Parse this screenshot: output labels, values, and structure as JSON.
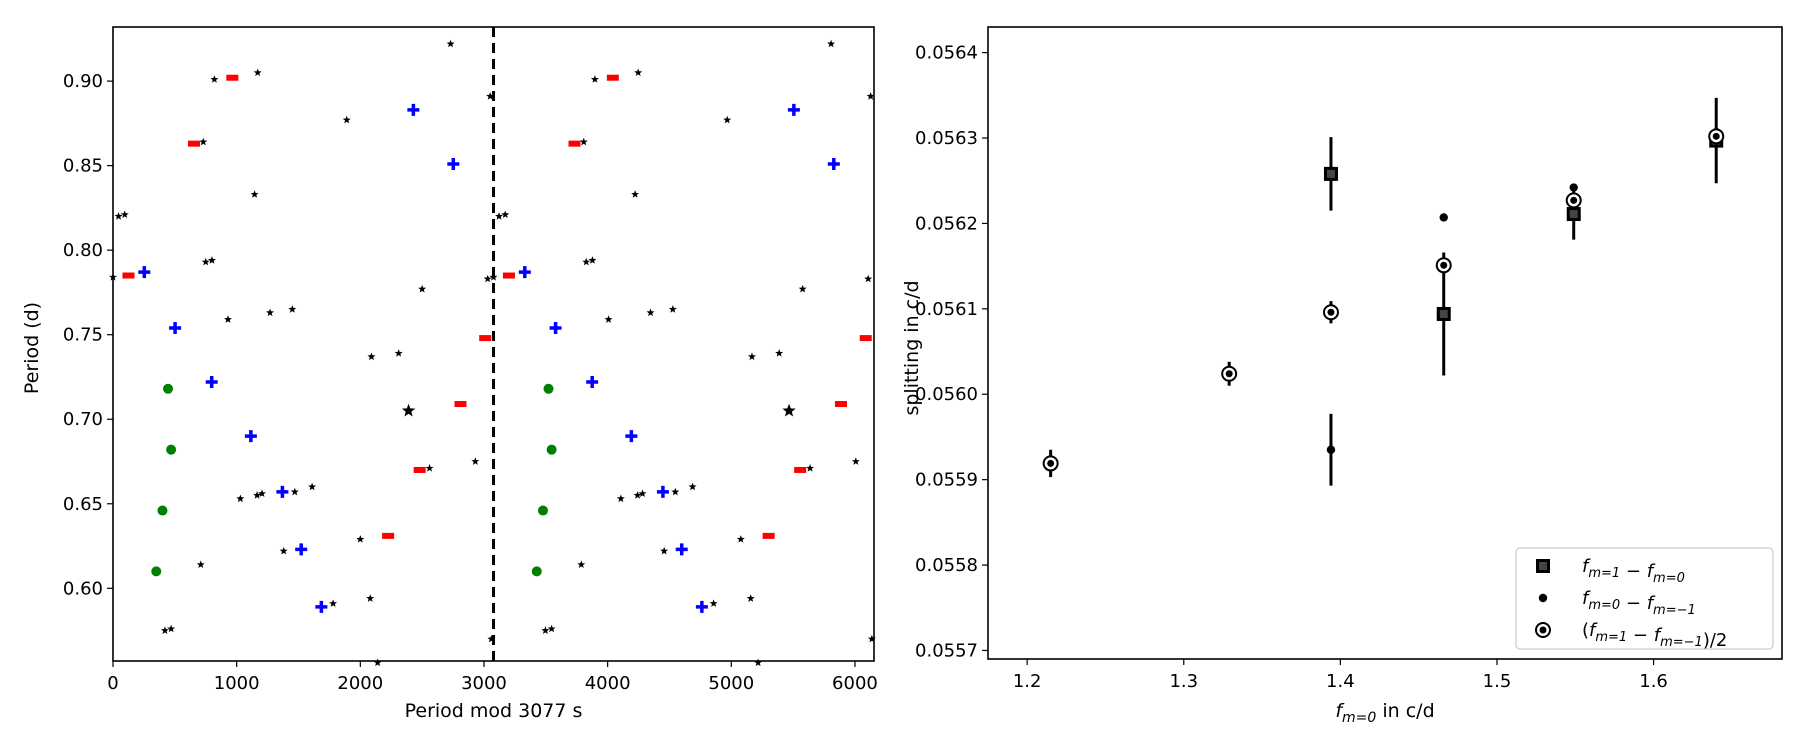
{
  "chart_data": [
    {
      "type": "scatter",
      "title": "",
      "xlabel": "Period mod 3077 s",
      "ylabel": "Period (d)",
      "xlim": [
        0,
        6154
      ],
      "ylim": [
        0.557,
        0.932
      ],
      "xticks": [
        0,
        1000,
        2000,
        3000,
        4000,
        5000,
        6000
      ],
      "yticks": [
        0.6,
        0.65,
        0.7,
        0.75,
        0.8,
        0.85,
        0.9
      ],
      "grid": false,
      "vline": {
        "x": 3077,
        "style": "dashed",
        "color": "#000000"
      },
      "repeat_offset": 3077,
      "series": [
        {
          "marker": "plus",
          "color": "#0000ff",
          "points": [
            [
              253,
              0.787
            ],
            [
              502,
              0.754
            ],
            [
              798,
              0.722
            ],
            [
              1115,
              0.69
            ],
            [
              1370,
              0.657
            ],
            [
              1522,
              0.623
            ],
            [
              1685,
              0.589
            ],
            [
              2429,
              0.883
            ],
            [
              2752,
              0.851
            ]
          ]
        },
        {
          "marker": "dash",
          "color": "#ff0000",
          "points": [
            [
              125,
              0.785
            ],
            [
              655,
              0.863
            ],
            [
              965,
              0.902
            ],
            [
              2225,
              0.631
            ],
            [
              2480,
              0.67
            ],
            [
              2810,
              0.709
            ],
            [
              3010,
              0.748
            ]
          ]
        },
        {
          "marker": "dot",
          "color": "#008000",
          "points": [
            [
              350,
              0.61
            ],
            [
              400,
              0.646
            ],
            [
              445,
              0.718
            ],
            [
              470,
              0.682
            ]
          ]
        },
        {
          "marker": "star",
          "color": "#000000",
          "points": [
            [
              0,
              0.784
            ],
            [
              45,
              0.82
            ],
            [
              95,
              0.821
            ],
            [
              420,
              0.575
            ],
            [
              470,
              0.576
            ],
            [
              710,
              0.614
            ],
            [
              750,
              0.793
            ],
            [
              800,
              0.794
            ],
            [
              730,
              0.864
            ],
            [
              820,
              0.901
            ],
            [
              930,
              0.759
            ],
            [
              1030,
              0.653
            ],
            [
              1145,
              0.833
            ],
            [
              1165,
              0.655
            ],
            [
              1205,
              0.656
            ],
            [
              1170,
              0.905
            ],
            [
              1270,
              0.763
            ],
            [
              1380,
              0.622
            ],
            [
              1450,
              0.765
            ],
            [
              1470,
              0.657
            ],
            [
              1610,
              0.66
            ],
            [
              1780,
              0.591
            ],
            [
              1890,
              0.877
            ],
            [
              2000,
              0.629
            ],
            [
              2080,
              0.594
            ],
            [
              2090,
              0.737
            ],
            [
              2140,
              0.556
            ],
            [
              2310,
              0.739
            ],
            [
              2500,
              0.777
            ],
            [
              2560,
              0.671
            ],
            [
              2730,
              0.922
            ],
            [
              2930,
              0.675
            ],
            [
              3030,
              0.783
            ],
            [
              3050,
              0.891
            ],
            [
              3060,
              0.57
            ]
          ]
        },
        {
          "marker": "bigstar",
          "color": "#000000",
          "points": [
            [
              2390,
              0.705
            ]
          ]
        }
      ]
    },
    {
      "type": "scatter",
      "title": "",
      "xlabel": "f_{m=0} in c/d",
      "ylabel": "splitting in c/d",
      "xlim": [
        1.175,
        1.682
      ],
      "ylim": [
        0.05569,
        0.05643
      ],
      "xticks": [
        1.2,
        1.3,
        1.4,
        1.5,
        1.6
      ],
      "yticks": [
        0.0557,
        0.0558,
        0.0559,
        0.056,
        0.0561,
        0.0562,
        0.0563,
        0.0564
      ],
      "ytick_labels": [
        "0.0557",
        "0.0558",
        "0.0559",
        "0.0560",
        "0.0561",
        "0.0562",
        "0.0563",
        "0.0564"
      ],
      "xtick_labels": [
        "1.2",
        "1.3",
        "1.4",
        "1.5",
        "1.6"
      ],
      "grid": false,
      "legend_position": "lower-right",
      "series": [
        {
          "name": "f_{m=1} − f_{m=0}",
          "marker": "square",
          "color": "#000000",
          "points": [
            [
              1.394,
              0.056258,
              4.3e-05
            ],
            [
              1.466,
              0.056094,
              7.2e-05
            ],
            [
              1.549,
              0.056211,
              3e-05
            ],
            [
              1.64,
              0.056297,
              5e-05
            ]
          ]
        },
        {
          "name": "f_{m=0} − f_{m=−1}",
          "marker": "smalldot",
          "color": "#000000",
          "points": [
            [
              1.394,
              0.055935,
              4.2e-05
            ],
            [
              1.466,
              0.056207,
              0.0
            ],
            [
              1.549,
              0.056242,
              0.0
            ],
            [
              1.64,
              0.056307,
              0.0
            ]
          ]
        },
        {
          "name": "(f_{m=1} − f_{m=−1})/2",
          "marker": "circledot",
          "color": "#000000",
          "points": [
            [
              1.215,
              0.055919,
              1.6e-05
            ],
            [
              1.329,
              0.056024,
              1.4e-05
            ],
            [
              1.394,
              0.056096,
              1.3e-05
            ],
            [
              1.466,
              0.056151,
              0.0
            ],
            [
              1.549,
              0.056227,
              0.0
            ],
            [
              1.64,
              0.056302,
              0.0
            ]
          ]
        }
      ]
    }
  ]
}
